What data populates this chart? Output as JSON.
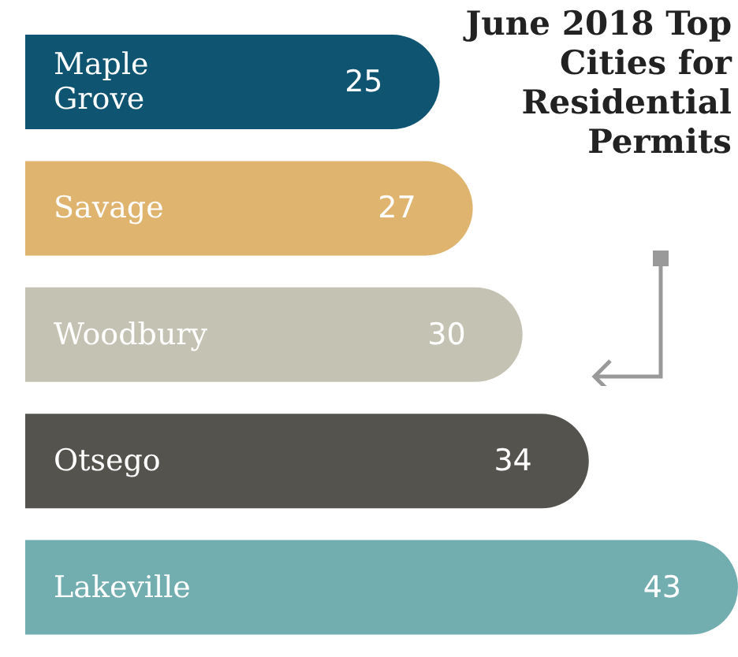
{
  "chart_data": {
    "type": "bar",
    "orientation": "horizontal",
    "title": "June 2018 Top Cities for Residential Permits",
    "categories": [
      "Maple Grove",
      "Savage",
      "Woodbury",
      "Otsego",
      "Lakeville"
    ],
    "values": [
      25,
      27,
      30,
      34,
      43
    ],
    "colors": [
      "#0f5470",
      "#dfb46e",
      "#c4c3b3",
      "#54534d",
      "#72aeb0"
    ],
    "data_labels": true
  }
}
